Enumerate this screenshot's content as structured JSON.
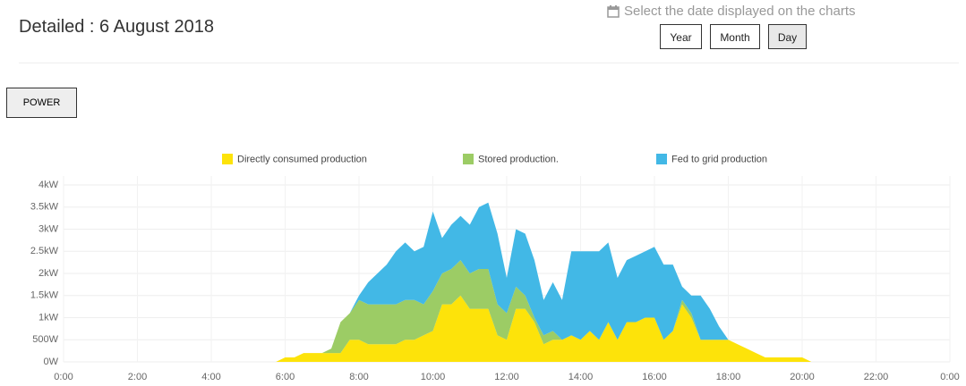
{
  "header": {
    "title": "Detailed : 6 August 2018",
    "date_prompt": "Select the date displayed on the charts",
    "buttons": [
      "Year",
      "Month",
      "Day"
    ]
  },
  "tabs": [
    "POWER"
  ],
  "chart_data": {
    "type": "area",
    "stacked": true,
    "grid": true,
    "legend": "top",
    "x": [
      5.75,
      6,
      6.25,
      6.5,
      6.75,
      7,
      7.25,
      7.5,
      7.75,
      8,
      8.25,
      8.5,
      8.75,
      9,
      9.25,
      9.5,
      9.75,
      10,
      10.25,
      10.5,
      10.75,
      11,
      11.25,
      11.5,
      11.75,
      12,
      12.25,
      12.5,
      12.75,
      13,
      13.25,
      13.5,
      13.75,
      14,
      14.25,
      14.5,
      14.75,
      15,
      15.25,
      15.5,
      15.75,
      16,
      16.25,
      16.5,
      16.75,
      17,
      17.25,
      17.5,
      17.75,
      18,
      18.25,
      18.5,
      18.75,
      19,
      19.25,
      19.5,
      19.75,
      20,
      20.25
    ],
    "xlim": [
      0,
      24
    ],
    "xticks": [
      {
        "value": 0,
        "label": "0:00"
      },
      {
        "value": 2,
        "label": "2:00"
      },
      {
        "value": 4,
        "label": "4:00"
      },
      {
        "value": 6,
        "label": "6:00"
      },
      {
        "value": 8,
        "label": "8:00"
      },
      {
        "value": 10,
        "label": "10:00"
      },
      {
        "value": 12,
        "label": "12:00"
      },
      {
        "value": 14,
        "label": "14:00"
      },
      {
        "value": 16,
        "label": "16:00"
      },
      {
        "value": 18,
        "label": "18:00"
      },
      {
        "value": 20,
        "label": "20:00"
      },
      {
        "value": 22,
        "label": "22:00"
      },
      {
        "value": 24,
        "label": "0:00"
      }
    ],
    "ylim": [
      0,
      4000
    ],
    "yticks": [
      {
        "value": 0,
        "label": "0W"
      },
      {
        "value": 500,
        "label": "500W"
      },
      {
        "value": 1000,
        "label": "1kW"
      },
      {
        "value": 1500,
        "label": "1.5kW"
      },
      {
        "value": 2000,
        "label": "2kW"
      },
      {
        "value": 2500,
        "label": "2.5kW"
      },
      {
        "value": 3000,
        "label": "3kW"
      },
      {
        "value": 3500,
        "label": "3.5kW"
      },
      {
        "value": 4000,
        "label": "4kW"
      }
    ],
    "series": [
      {
        "name": "Directly consumed production",
        "color": "#fde30a",
        "values": [
          0,
          100,
          100,
          200,
          200,
          200,
          200,
          200,
          500,
          500,
          400,
          400,
          400,
          400,
          500,
          500,
          600,
          700,
          1300,
          1300,
          1500,
          1200,
          1200,
          1200,
          600,
          500,
          1200,
          1200,
          900,
          400,
          500,
          500,
          600,
          500,
          700,
          500,
          900,
          500,
          900,
          900,
          1000,
          1000,
          500,
          700,
          1300,
          1000,
          500,
          500,
          500,
          500,
          400,
          300,
          200,
          100,
          100,
          100,
          100,
          100,
          0
        ]
      },
      {
        "name": "Stored production.",
        "color": "#9ccc65",
        "values": [
          0,
          0,
          0,
          0,
          0,
          0,
          100,
          700,
          600,
          900,
          900,
          900,
          900,
          900,
          900,
          900,
          700,
          900,
          700,
          800,
          800,
          800,
          900,
          900,
          700,
          600,
          500,
          300,
          100,
          200,
          200,
          0,
          0,
          0,
          0,
          0,
          0,
          0,
          0,
          0,
          0,
          0,
          0,
          0,
          100,
          100,
          0,
          0,
          0,
          0,
          0,
          0,
          0,
          0,
          0,
          0,
          0,
          0,
          0
        ]
      },
      {
        "name": "Fed to grid production",
        "color": "#42b8e6",
        "values": [
          0,
          0,
          0,
          0,
          0,
          0,
          0,
          0,
          0,
          100,
          500,
          700,
          900,
          1200,
          1300,
          1100,
          1300,
          1800,
          800,
          1000,
          1000,
          1100,
          1400,
          1500,
          1600,
          800,
          1300,
          1400,
          1300,
          800,
          1100,
          900,
          1900,
          2000,
          1800,
          2000,
          1800,
          1400,
          1400,
          1500,
          1500,
          1600,
          1700,
          1500,
          300,
          400,
          1000,
          700,
          300,
          0,
          0,
          0,
          0,
          0,
          0,
          0,
          0,
          0,
          0
        ]
      }
    ]
  }
}
